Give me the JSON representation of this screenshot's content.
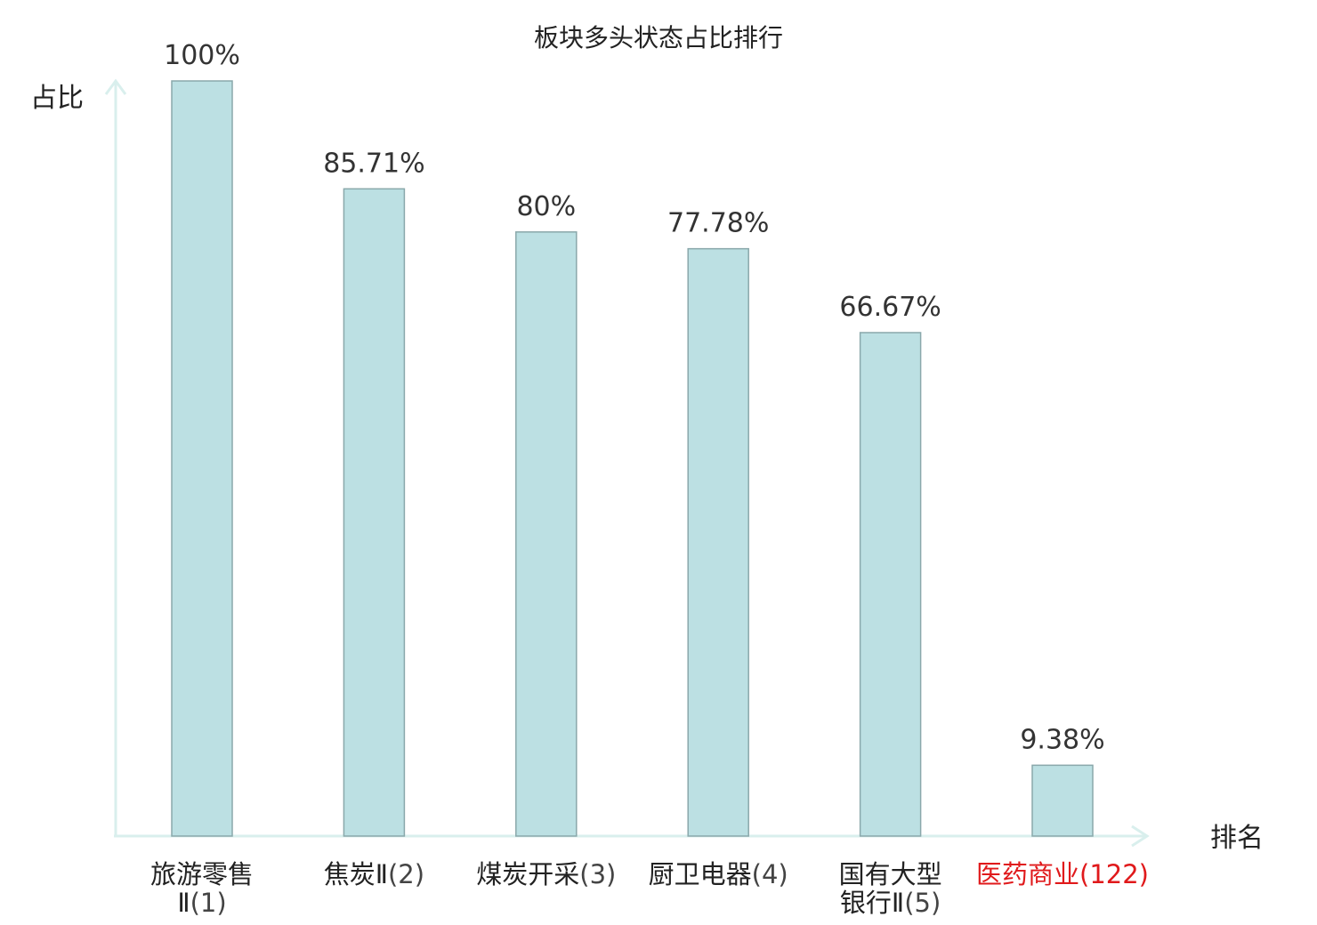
{
  "chart_data": {
    "type": "bar",
    "title": "板块多头状态占比排行",
    "ylabel": "占比",
    "xlabel": "排名",
    "ylim": [
      0,
      100
    ],
    "grid": false,
    "categories": [
      {
        "name_lines": [
          "旅游零售",
          "Ⅱ"
        ],
        "rank": "(1)",
        "highlight": false
      },
      {
        "name_lines": [
          "焦炭Ⅱ"
        ],
        "rank": "(2)",
        "highlight": false
      },
      {
        "name_lines": [
          "煤炭开采"
        ],
        "rank": "(3)",
        "highlight": false
      },
      {
        "name_lines": [
          "厨卫电器"
        ],
        "rank": "(4)",
        "highlight": false
      },
      {
        "name_lines": [
          "国有大型",
          "银行Ⅱ"
        ],
        "rank": "(5)",
        "highlight": false
      },
      {
        "name_lines": [
          "医药商业"
        ],
        "rank": "(122)",
        "highlight": true
      }
    ],
    "values": [
      100,
      85.71,
      80,
      77.78,
      66.67,
      9.38
    ],
    "value_labels": [
      "100%",
      "85.71%",
      "80%",
      "77.78%",
      "66.67%",
      "9.38%"
    ],
    "colors": {
      "bar_fill": "#bce0e3",
      "bar_stroke": "#8aa8ab",
      "axis": "#d9efed",
      "highlight_text": "#e0191b"
    }
  }
}
